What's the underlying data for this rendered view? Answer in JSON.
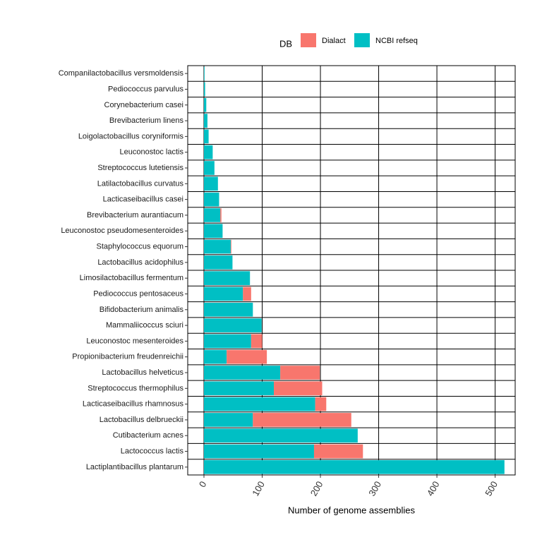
{
  "chart_data": {
    "type": "bar",
    "orientation": "horizontal",
    "stacked": true,
    "xlabel": "Number of genome assemblies",
    "ylabel": "",
    "xlim": [
      0,
      530
    ],
    "xticks": [
      0,
      100,
      200,
      300,
      400,
      500
    ],
    "grid": true,
    "legend": {
      "title": "DB",
      "position": "top"
    },
    "categories": [
      "Companilactobacillus versmoldensis",
      "Pediococcus parvulus",
      "Corynebacterium casei",
      "Brevibacterium linens",
      "Loigolactobacillus coryniformis",
      "Leuconostoc lactis",
      "Streptococcus lutetiensis",
      "Latilactobacillus curvatus",
      "Lacticaseibacillus casei",
      "Brevibacterium aurantiacum",
      "Leuconostoc pseudomesenteroides",
      "Staphylococcus equorum",
      "Lactobacillus acidophilus",
      "Limosilactobacillus fermentum",
      "Pediococcus pentosaceus",
      "Bifidobacterium animalis",
      "Mammaliicoccus sciuri",
      "Leuconostoc mesenteroides",
      "Propionibacterium freudenreichii",
      "Lactobacillus helveticus",
      "Streptococcus thermophilus",
      "Lacticaseibacillus rhamnosus",
      "Lactobacillus delbrueckii",
      "Cutibacterium acnes",
      "Lactococcus lactis",
      "Lactiplantibacillus plantarum"
    ],
    "series": [
      {
        "name": "NCBI refseq",
        "color": "#00BFC4",
        "values": [
          1,
          2,
          4,
          6,
          8,
          15,
          18,
          24,
          26,
          28,
          32,
          46,
          49,
          79,
          67,
          84,
          99,
          81,
          39,
          131,
          120,
          191,
          84,
          264,
          189,
          516
        ]
      },
      {
        "name": "Dialact",
        "color": "#F8766D",
        "values": [
          0,
          0,
          0,
          0,
          0,
          0,
          0,
          0,
          0,
          2,
          0,
          1,
          0,
          0,
          14,
          0,
          0,
          19,
          69,
          68,
          83,
          19,
          169,
          0,
          84,
          0
        ]
      }
    ]
  }
}
